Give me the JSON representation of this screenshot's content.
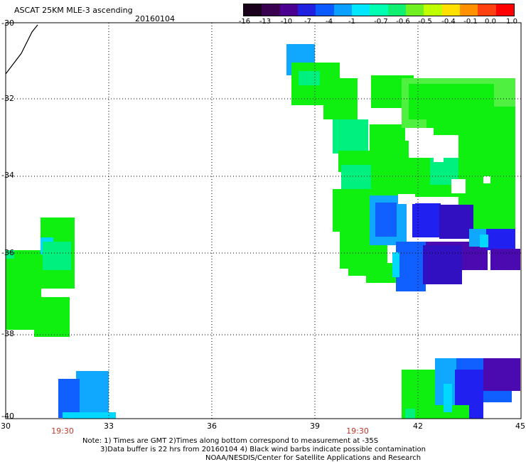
{
  "header": {
    "title": "ASCAT 25KM MLE-3 ascending",
    "date": "20160104"
  },
  "colorbar": {
    "labels": [
      "-16",
      "-13",
      "-10",
      "-7",
      "-4",
      "-1",
      "-0.7",
      "-0.6",
      "-0.5",
      "-0.4",
      "-0.1",
      "0.0",
      "1.0"
    ],
    "colors": [
      "#1a001a",
      "#3a0050",
      "#4b0090",
      "#2020e0",
      "#0a5aff",
      "#0aa0ff",
      "#00e6ff",
      "#00ffb0",
      "#10f070",
      "#70f020",
      "#c0ff00",
      "#ffe000",
      "#ff9000",
      "#ff4010",
      "#ff0000"
    ]
  },
  "axes": {
    "y_labels": [
      "-30",
      "-32",
      "-34",
      "-36",
      "-38",
      "-40"
    ],
    "x_labels": [
      "30",
      "33",
      "36",
      "39",
      "42",
      "45"
    ],
    "time_labels": [
      "19:30",
      "19:30"
    ]
  },
  "notes": {
    "line1": "Note: 1) Times are GMT 2)Times along bottom correspond to measurement at -35S",
    "line2": "3)Data buffer is 22 hrs from 20160104 4) Black wind barbs indicate possible contamination",
    "line3": "NOAA/NESDIS/Center for Satellite Applications and Research"
  },
  "palette": {
    "green": "#10f010",
    "green_light": "#50f040",
    "aqua_green": "#00f080",
    "cyan": "#00d8ff",
    "sky": "#10a8ff",
    "blue": "#1060ff",
    "royal": "#2020f0",
    "indigo": "#3010c0",
    "purple": "#4a0ab0"
  }
}
